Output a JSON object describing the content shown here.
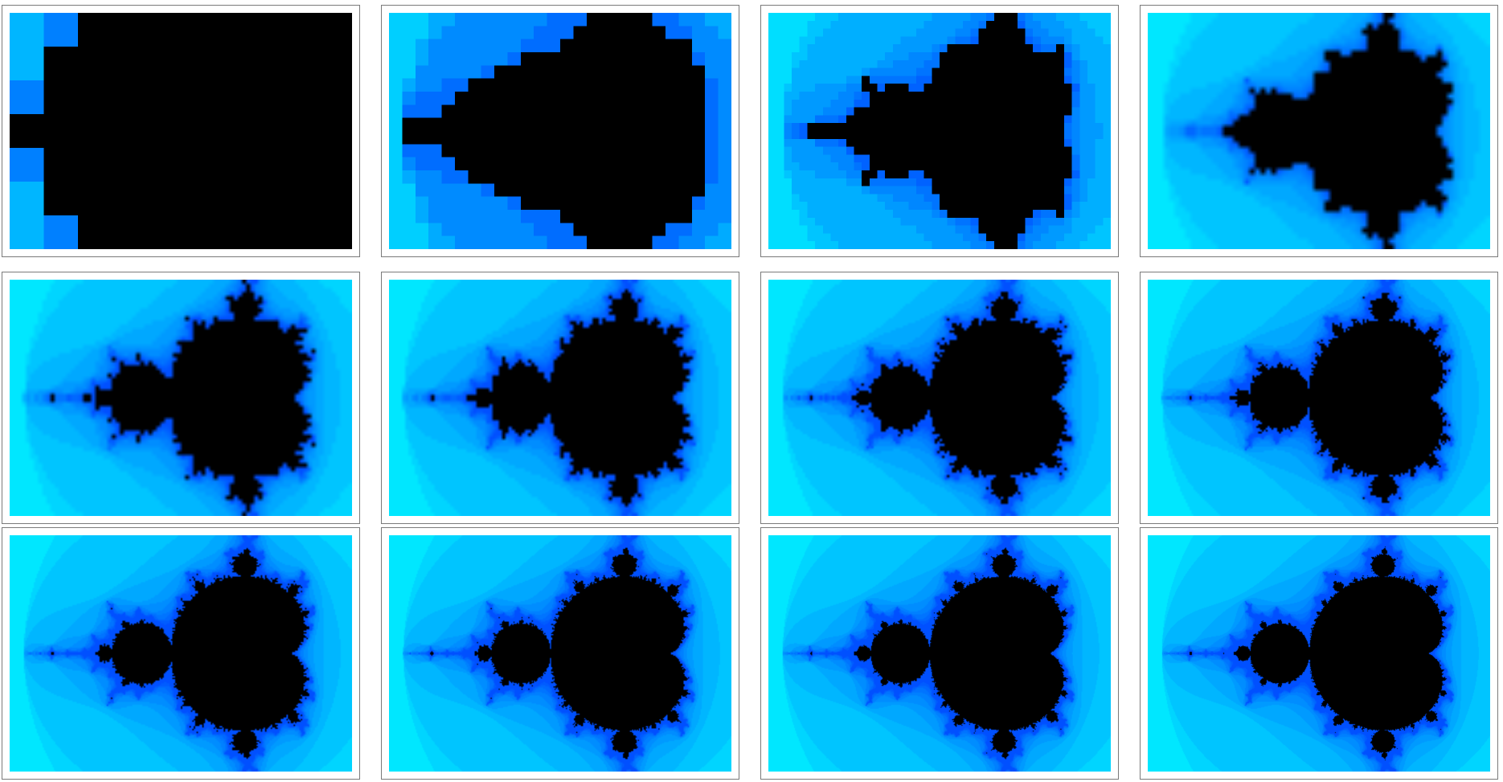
{
  "figure": {
    "set": "Mandelbrot",
    "palette": {
      "inside": "#000000",
      "low": "#0050ff",
      "high": "#00ffff"
    },
    "panels": [
      {
        "grid": [
          10,
          7
        ],
        "iterations": 3,
        "pixelated": true
      },
      {
        "grid": [
          26,
          18
        ],
        "iterations": 5,
        "pixelated": true
      },
      {
        "grid": [
          44,
          30
        ],
        "iterations": 8,
        "pixelated": true
      },
      {
        "grid": [
          64,
          44
        ],
        "iterations": 12,
        "pixelated": false
      },
      {
        "grid": [
          84,
          58
        ],
        "iterations": 18,
        "pixelated": false
      },
      {
        "grid": [
          106,
          74
        ],
        "iterations": 24,
        "pixelated": false
      },
      {
        "grid": [
          140,
          98
        ],
        "iterations": 32,
        "pixelated": false
      },
      {
        "grid": [
          180,
          126
        ],
        "iterations": 40,
        "pixelated": false
      },
      {
        "grid": [
          240,
          166
        ],
        "iterations": 60,
        "pixelated": false
      },
      {
        "grid": [
          300,
          208
        ],
        "iterations": 80,
        "pixelated": false
      },
      {
        "grid": [
          360,
          248
        ],
        "iterations": 110,
        "pixelated": false
      },
      {
        "grid": [
          426,
          294
        ],
        "iterations": 160,
        "pixelated": false
      }
    ]
  }
}
